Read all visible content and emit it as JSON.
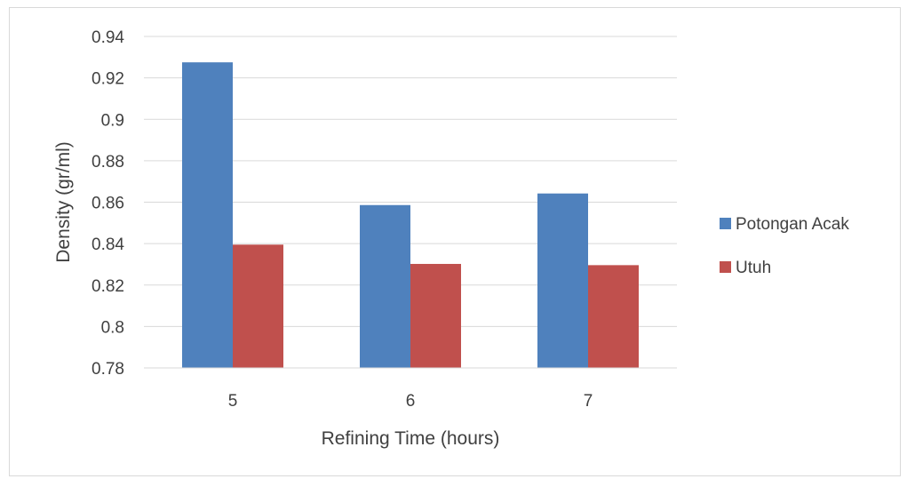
{
  "chart_data": {
    "type": "bar",
    "categories": [
      "5",
      "6",
      "7"
    ],
    "series": [
      {
        "name": "Potongan Acak",
        "color": "#4f81bd",
        "values": [
          0.9275,
          0.8586,
          0.8642
        ]
      },
      {
        "name": "Utuh",
        "color": "#c0504d",
        "values": [
          0.8395,
          0.8302,
          0.8296
        ]
      }
    ],
    "title": "",
    "xlabel": "Refining Time (hours)",
    "ylabel": "Density  (gr/ml)",
    "ylim": [
      0.78,
      0.94
    ],
    "yticks": [
      "0.94",
      "0.92",
      "0.9",
      "0.88",
      "0.86",
      "0.84",
      "0.82",
      "0.8",
      "0.78"
    ],
    "grid": true,
    "legend": "right"
  }
}
